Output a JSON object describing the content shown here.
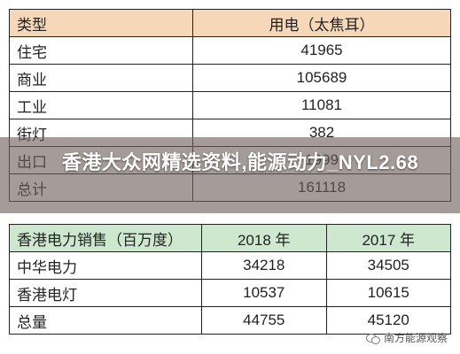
{
  "table1": {
    "headers": [
      "类型",
      "用电（太焦耳）"
    ],
    "rows": [
      [
        "住宅",
        "41965"
      ],
      [
        "商业",
        "105689"
      ],
      [
        "工业",
        "11081"
      ],
      [
        "街灯",
        "382"
      ],
      [
        "出口",
        "1999"
      ],
      [
        "总计",
        "161118"
      ]
    ]
  },
  "table2": {
    "headers": [
      "香港电力销售（百万度）",
      "2018 年",
      "2017 年"
    ],
    "rows": [
      [
        "中华电力",
        "34218",
        "34505"
      ],
      [
        "香港电灯",
        "10537",
        "10615"
      ],
      [
        "总量",
        "44755",
        "45120"
      ]
    ]
  },
  "overlay": {
    "text": "香港大众网精选资料,能源动力_NYL2.68"
  },
  "watermark": {
    "text": "南方能源观察",
    "icon": "wechat-icon"
  }
}
